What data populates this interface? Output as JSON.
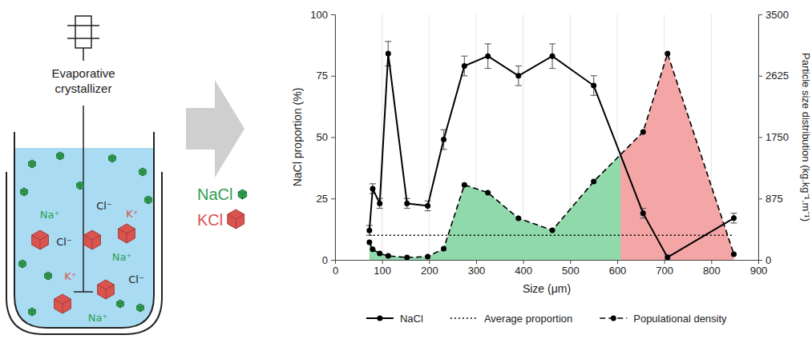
{
  "diagram": {
    "title": "Evaporative crystallizer",
    "ions": [
      {
        "label": "Cl⁻",
        "color": "#222222"
      },
      {
        "label": "Na⁺",
        "color": "#2e9e4f"
      },
      {
        "label": "K⁺",
        "color": "#d9534f"
      },
      {
        "label": "Cl⁻",
        "color": "#222222"
      },
      {
        "label": "Na⁺",
        "color": "#2e9e4f"
      },
      {
        "label": "K⁺",
        "color": "#d9534f"
      },
      {
        "label": "Cl⁻",
        "color": "#222222"
      },
      {
        "label": "Na⁺",
        "color": "#2e9e4f"
      }
    ],
    "legend": [
      {
        "label": "NaCl",
        "color": "#2e9e4f"
      },
      {
        "label": "KCl",
        "color": "#d9534f"
      }
    ]
  },
  "chart_data": {
    "type": "line",
    "x": [
      73,
      80,
      95,
      113,
      153,
      197,
      231,
      275,
      325,
      390,
      462,
      550,
      655,
      707,
      848
    ],
    "xlim": [
      0,
      900
    ],
    "xticks": [
      0,
      100,
      200,
      300,
      400,
      500,
      600,
      700,
      800,
      900
    ],
    "ylim": [
      0,
      100
    ],
    "yticks": [
      0,
      25,
      50,
      75,
      100
    ],
    "y2lim": [
      0,
      3500
    ],
    "y2ticks": [
      0,
      875,
      1750,
      2625,
      3500
    ],
    "x_label": "Size (μm)",
    "y_label": "NaCl proportion (%)",
    "y2_label": "Particle size distribution (kg.kg⁻¹.m⁻¹)",
    "grid": true,
    "legend": "bottom",
    "series": [
      {
        "name": "NaCl",
        "color": "#000000",
        "line_style": "solid",
        "marker": "circle",
        "values": [
          12,
          29,
          23,
          84,
          23,
          22,
          49,
          79,
          83,
          75,
          83,
          71,
          19,
          1,
          17
        ],
        "errors": [
          2,
          2,
          2,
          5,
          2,
          2,
          4,
          4,
          5,
          4,
          5,
          4,
          2,
          1,
          2
        ]
      },
      {
        "name": "Average proportion",
        "color": "#000000",
        "line_style": "dotted",
        "x": [
          73,
          848
        ],
        "values": [
          10,
          10
        ]
      },
      {
        "name": "Populational density",
        "color": "#000000",
        "line_style": "dashed",
        "marker": "circle",
        "axis": "y2",
        "values": [
          250,
          150,
          90,
          57,
          34,
          45,
          160,
          1070,
          957,
          593,
          422,
          1117,
          1824,
          2940,
          80
        ]
      }
    ]
  }
}
